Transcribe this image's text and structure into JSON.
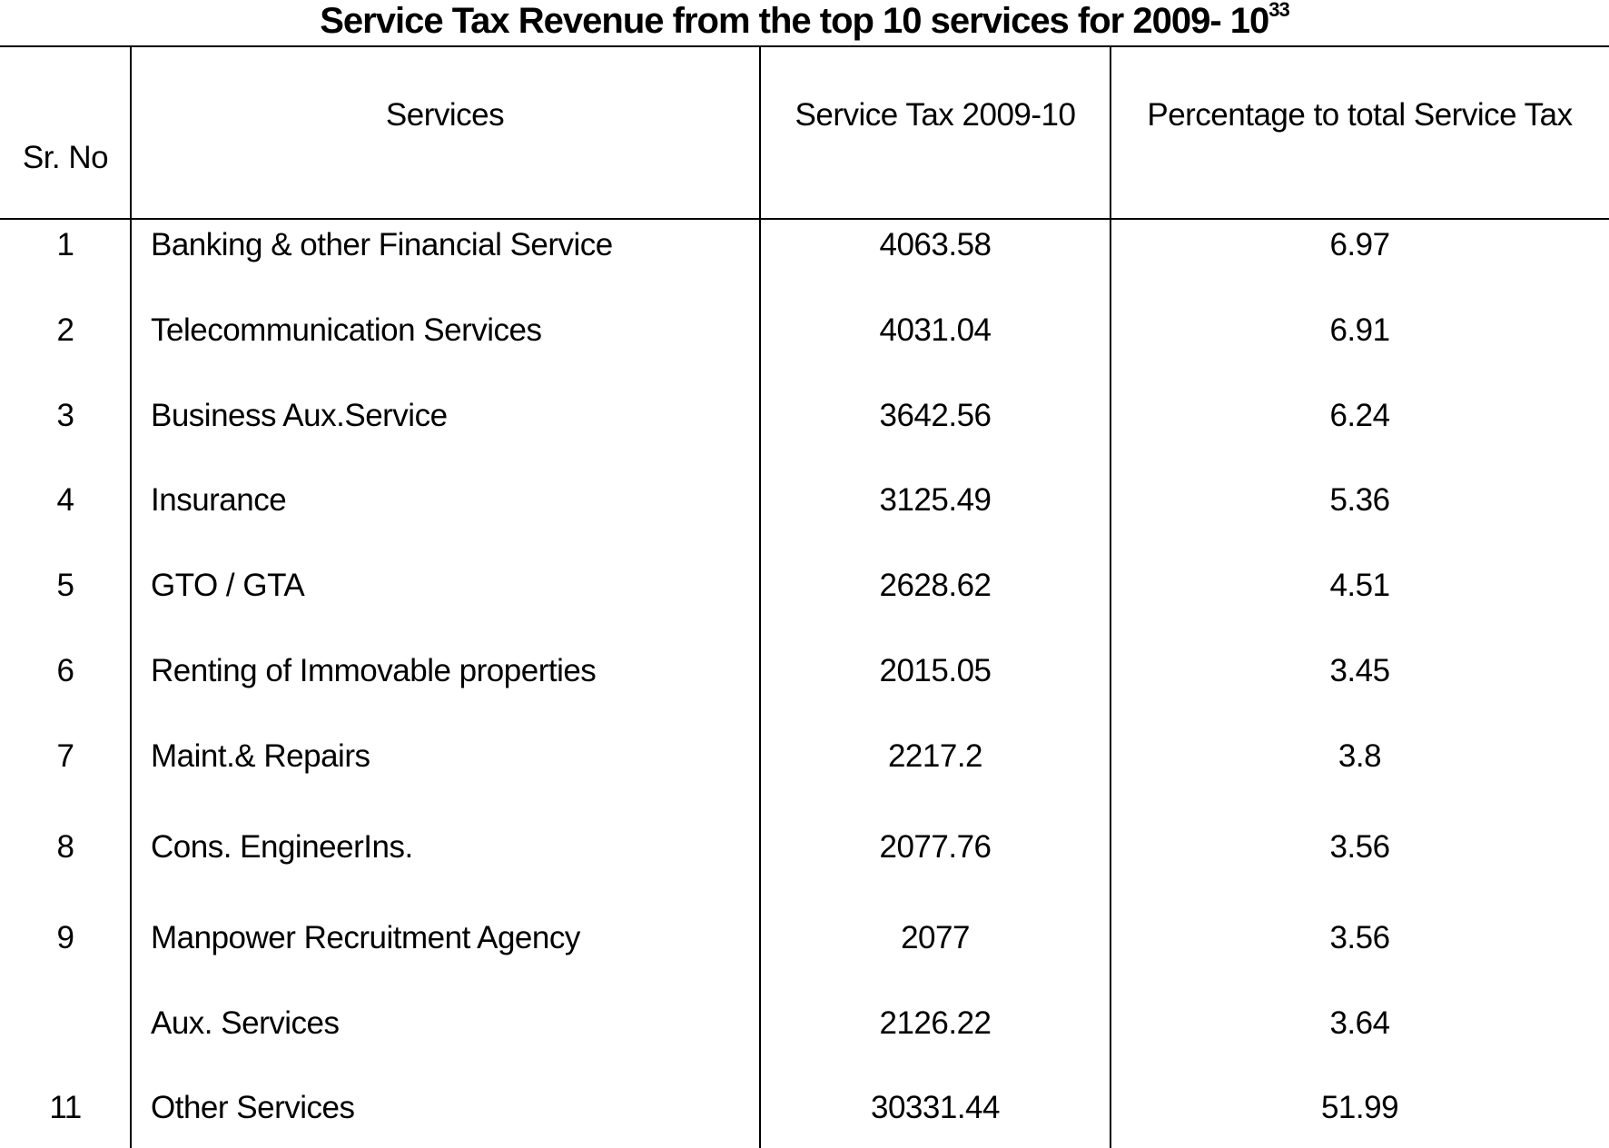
{
  "title": {
    "text": "Service Tax Revenue from the top 10 services for 2009- 10",
    "footnote": "33"
  },
  "headers": {
    "sr_no": "Sr. No",
    "services": "Services",
    "tax": "Service Tax 2009-10",
    "percent": "Percentage to total Service Tax"
  },
  "rows": [
    {
      "sr": "1",
      "service": "Banking & other Financial Service",
      "tax": "4063.58",
      "pct": "6.97"
    },
    {
      "sr": "2",
      "service": "Telecommunication Services",
      "tax": "4031.04",
      "pct": "6.91"
    },
    {
      "sr": "3",
      "service": "Business Aux.Service",
      "tax": "3642.56",
      "pct": "6.24"
    },
    {
      "sr": "4",
      "service": "Insurance",
      "tax": "3125.49",
      "pct": "5.36"
    },
    {
      "sr": "5",
      "service": "GTO / GTA",
      "tax": "2628.62",
      "pct": "4.51"
    },
    {
      "sr": "6",
      "service": "Renting of Immovable properties",
      "tax": "2015.05",
      "pct": "3.45"
    },
    {
      "sr": "7",
      "service": "Maint.& Repairs",
      "tax": "2217.2",
      "pct": "3.8"
    },
    {
      "sr": "8",
      "service": "Cons. EngineerIns.",
      "tax": "2077.76",
      "pct": "3.56"
    },
    {
      "sr": "9",
      "service": "Manpower Recruitment Agency",
      "tax": "2077",
      "pct": "3.56"
    },
    {
      "sr": "",
      "service": "Aux. Services",
      "tax": "2126.22",
      "pct": "3.64"
    },
    {
      "sr": "11",
      "service": "Other Services",
      "tax": "30331.44",
      "pct": "51.99"
    }
  ]
}
